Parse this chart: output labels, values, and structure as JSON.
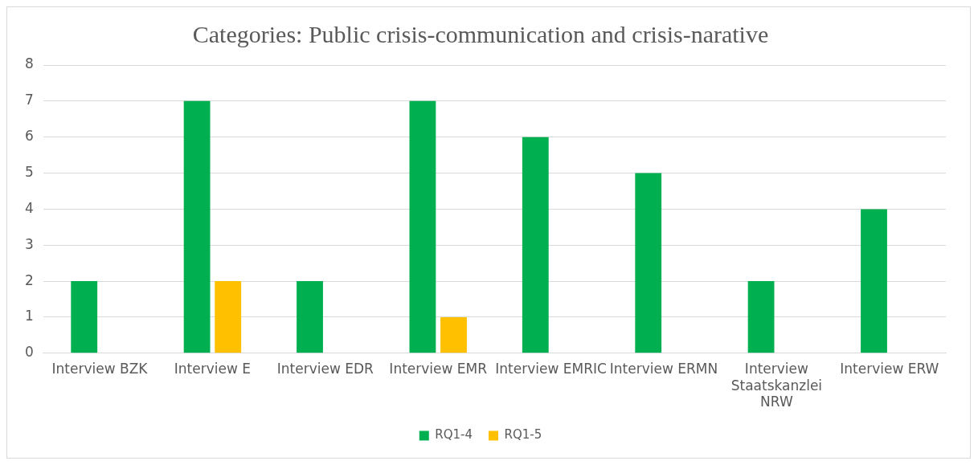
{
  "chart_data": {
    "type": "bar",
    "title": "Categories: Public crisis-communication and crisis-narative",
    "categories": [
      "Interview BZK",
      "Interview E",
      "Interview EDR",
      "Interview EMR",
      "Interview EMRIC",
      "Interview ERMN",
      "Interview Staatskanzlei NRW",
      "Interview ERW"
    ],
    "series": [
      {
        "name": "RQ1-4",
        "color": "#00b050",
        "values": [
          2,
          7,
          2,
          7,
          6,
          5,
          2,
          4
        ]
      },
      {
        "name": "RQ1-5",
        "color": "#ffc000",
        "values": [
          0,
          2,
          0,
          1,
          0,
          0,
          0,
          0
        ]
      }
    ],
    "ylim": [
      0,
      8
    ],
    "yticks": [
      0,
      1,
      2,
      3,
      4,
      5,
      6,
      7,
      8
    ],
    "grid": "y",
    "legend": "bottom"
  }
}
